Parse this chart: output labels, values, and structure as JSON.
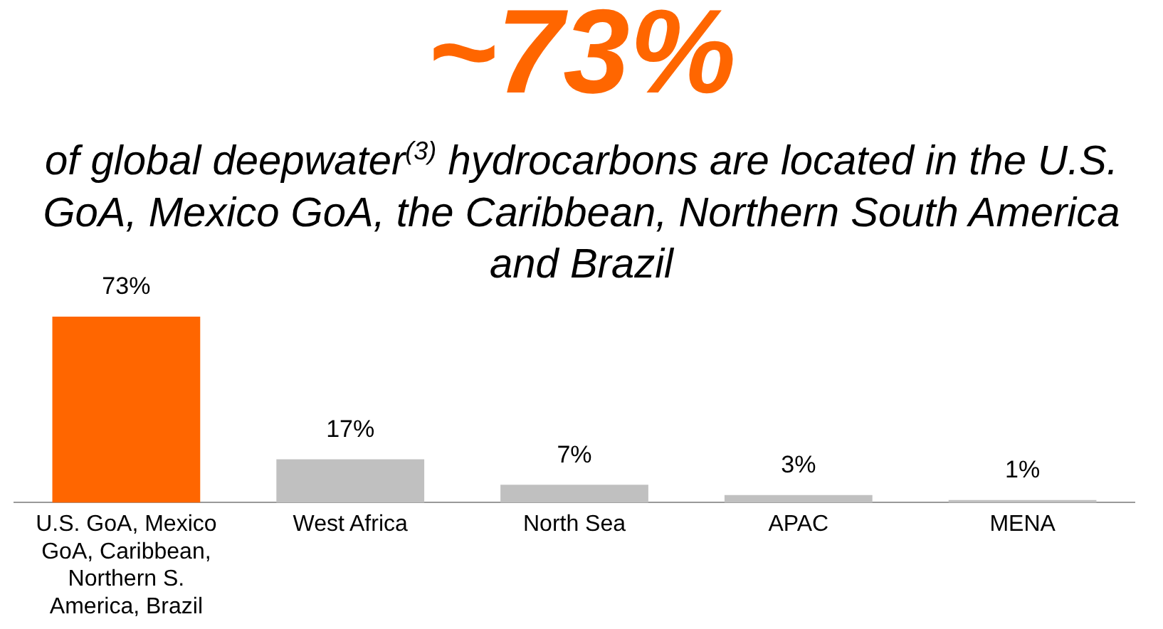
{
  "chart_data": {
    "type": "bar",
    "title": "~73%",
    "subtitle": "of global deepwater$^{(3)}$ hydrocarbons are located in the U.S. GoA, Mexico GoA, the Caribbean, Northern South America and Brazil",
    "categories": [
      "U.S. GoA, Mexico GoA, Caribbean, Northern S. America, Brazil",
      "West Africa",
      "North Sea",
      "APAC",
      "MENA"
    ],
    "values": [
      73,
      17,
      7,
      3,
      1
    ],
    "colors": [
      "#ff6600",
      "#c0c0c0",
      "#c0c0c0",
      "#c0c0c0",
      "#c0c0c0"
    ],
    "value_labels": [
      "73%",
      "17%",
      "7%",
      "3%",
      "1%"
    ],
    "grid": false,
    "legend": false
  }
}
